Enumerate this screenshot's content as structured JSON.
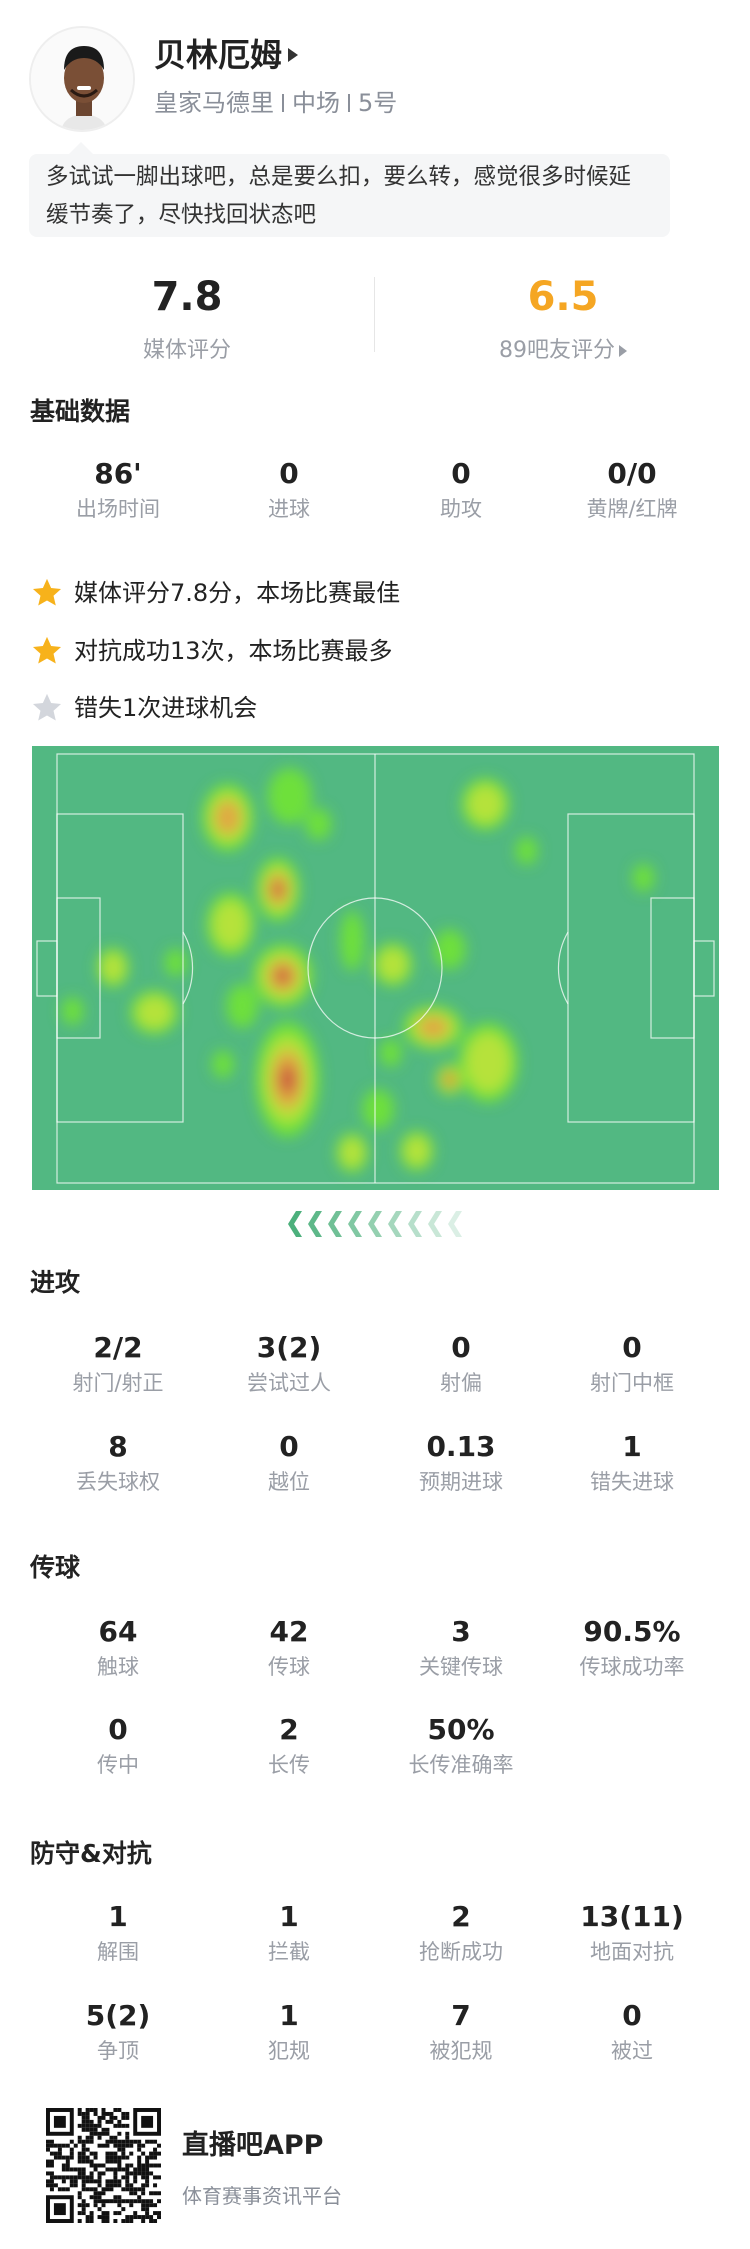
{
  "player": {
    "name": "贝林厄姆",
    "team": "皇家马德里",
    "position": "中场",
    "number": "5号",
    "comment": "多试试一脚出球吧，总是要么扣，要么转，感觉很多时候延缓节奏了，尽快找回状态吧"
  },
  "ratings": {
    "media_value": "7.8",
    "media_label": "媒体评分",
    "fan_value": "6.5",
    "fan_label": "89吧友评分",
    "fan_color": "#f5a623"
  },
  "basic": {
    "title": "基础数据",
    "stats": [
      {
        "value": "86'",
        "label": "出场时间"
      },
      {
        "value": "0",
        "label": "进球"
      },
      {
        "value": "0",
        "label": "助攻"
      },
      {
        "value": "0/0",
        "label": "黄牌/红牌"
      }
    ]
  },
  "highlights": [
    {
      "icon": "star-gold-icon",
      "text": "媒体评分7.8分，本场比赛最佳"
    },
    {
      "icon": "star-gold-icon",
      "text": "对抗成功13次，本场比赛最多"
    },
    {
      "icon": "star-gray-icon",
      "text": "错失1次进球机会"
    }
  ],
  "heatmap": {
    "pitch_color": "#52b882",
    "attack_direction": "left"
  },
  "attack": {
    "title": "进攻",
    "stats": [
      {
        "value": "2/2",
        "label": "射门/射正"
      },
      {
        "value": "3(2)",
        "label": "尝试过人"
      },
      {
        "value": "0",
        "label": "射偏"
      },
      {
        "value": "0",
        "label": "射门中框"
      },
      {
        "value": "8",
        "label": "丢失球权"
      },
      {
        "value": "0",
        "label": "越位"
      },
      {
        "value": "0.13",
        "label": "预期进球"
      },
      {
        "value": "1",
        "label": "错失进球"
      }
    ]
  },
  "passing": {
    "title": "传球",
    "stats": [
      {
        "value": "64",
        "label": "触球"
      },
      {
        "value": "42",
        "label": "传球"
      },
      {
        "value": "3",
        "label": "关键传球"
      },
      {
        "value": "90.5%",
        "label": "传球成功率"
      },
      {
        "value": "0",
        "label": "传中"
      },
      {
        "value": "2",
        "label": "长传"
      },
      {
        "value": "50%",
        "label": "长传准确率"
      }
    ]
  },
  "defense": {
    "title": "防守&对抗",
    "stats": [
      {
        "value": "1",
        "label": "解围"
      },
      {
        "value": "1",
        "label": "拦截"
      },
      {
        "value": "2",
        "label": "抢断成功"
      },
      {
        "value": "13(11)",
        "label": "地面对抗"
      },
      {
        "value": "5(2)",
        "label": "争顶"
      },
      {
        "value": "1",
        "label": "犯规"
      },
      {
        "value": "7",
        "label": "被犯规"
      },
      {
        "value": "0",
        "label": "被过"
      }
    ]
  },
  "footer": {
    "app_name": "直播吧APP",
    "tagline": "体育赛事资讯平台"
  }
}
